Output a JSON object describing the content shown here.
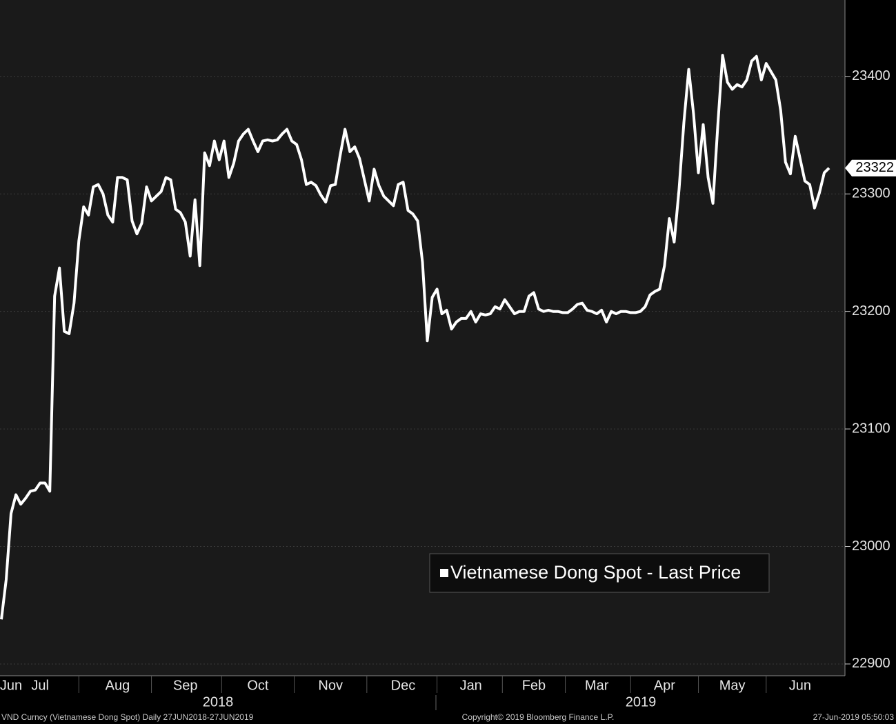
{
  "chart_data": {
    "type": "line",
    "categories": [
      null,
      null,
      "Jun",
      null,
      null,
      null,
      null,
      null,
      "Jul",
      null,
      null,
      null,
      null,
      null,
      null,
      null,
      null,
      null,
      null,
      null,
      null,
      null,
      null,
      null,
      "Aug",
      null,
      null,
      null,
      null,
      null,
      null,
      null,
      null,
      null,
      null,
      null,
      null,
      null,
      "Sep",
      null,
      null,
      null,
      null,
      null,
      null,
      null,
      null,
      null,
      null,
      null,
      null,
      null,
      null,
      "Oct",
      null,
      null,
      null,
      null,
      null,
      null,
      null,
      null,
      null,
      null,
      null,
      null,
      null,
      null,
      "Nov",
      null,
      null,
      null,
      null,
      null,
      null,
      null,
      null,
      null,
      null,
      null,
      null,
      null,
      null,
      "Dec",
      null,
      null,
      null,
      null,
      null,
      null,
      null,
      null,
      null,
      null,
      null,
      null,
      null,
      "Jan",
      null,
      null,
      null,
      null,
      null,
      null,
      null,
      null,
      null,
      null,
      null,
      null,
      "Feb",
      null,
      null,
      null,
      null,
      null,
      null,
      null,
      null,
      null,
      null,
      null,
      null,
      "Mar",
      null,
      null,
      null,
      null,
      null,
      null,
      null,
      null,
      null,
      null,
      null,
      null,
      null,
      "Apr",
      null,
      null,
      null,
      null,
      null,
      null,
      null,
      null,
      null,
      null,
      null,
      null,
      null,
      "May",
      null,
      null,
      null,
      null,
      null,
      null,
      null,
      null,
      null,
      null,
      null,
      null,
      null,
      "Jun",
      null,
      null,
      null,
      null,
      null,
      null
    ],
    "series": [
      {
        "name": "Vietnamese Dong Spot - Last Price",
        "color": "#ffffff",
        "values": [
          22938,
          22972,
          23028,
          23044,
          23036,
          23041,
          23047,
          23048,
          23054,
          23054,
          23047,
          23213,
          23237,
          23183,
          23181,
          23207,
          23260,
          23289,
          23282,
          23306,
          23308,
          23300,
          23282,
          23276,
          23314,
          23314,
          23312,
          23277,
          23266,
          23275,
          23306,
          23294,
          23298,
          23302,
          23314,
          23312,
          23287,
          23284,
          23276,
          23247,
          23295,
          23239,
          23335,
          23324,
          23345,
          23329,
          23345,
          23314,
          23326,
          23345,
          23351,
          23355,
          23345,
          23336,
          23345,
          23346,
          23345,
          23346,
          23351,
          23355,
          23345,
          23342,
          23329,
          23308,
          23310,
          23307,
          23299,
          23293,
          23307,
          23308,
          23333,
          23355,
          23336,
          23340,
          23330,
          23312,
          23294,
          23321,
          23307,
          23298,
          23294,
          23290,
          23308,
          23310,
          23286,
          23283,
          23277,
          23242,
          23175,
          23212,
          23219,
          23198,
          23201,
          23185,
          23191,
          23194,
          23194,
          23200,
          23191,
          23198,
          23197,
          23198,
          23204,
          23202,
          23210,
          23204,
          23198,
          23200,
          23200,
          23213,
          23216,
          23202,
          23200,
          23201,
          23200,
          23200,
          23199,
          23199,
          23202,
          23206,
          23207,
          23201,
          23200,
          23198,
          23201,
          23191,
          23200,
          23198,
          23200,
          23200,
          23199,
          23199,
          23200,
          23204,
          23214,
          23217,
          23219,
          23239,
          23279,
          23259,
          23304,
          23361,
          23406,
          23368,
          23318,
          23359,
          23314,
          23292,
          23358,
          23418,
          23395,
          23389,
          23393,
          23391,
          23397,
          23413,
          23417,
          23397,
          23411,
          23404,
          23397,
          23371,
          23327,
          23317,
          23349,
          23330,
          23311,
          23308,
          23288,
          23301,
          23318,
          23322
        ]
      }
    ],
    "ylim": [
      22890,
      23465
    ],
    "yticks": [
      22900,
      23000,
      23100,
      23200,
      23300,
      23400
    ],
    "grid": true,
    "years": [
      "2018",
      "2019"
    ],
    "footer": {
      "left": "VND Curncy (Vietnamese Dong Spot)  Daily 27JUN2018-27JUN2019",
      "center": "Copyright© 2019 Bloomberg Finance L.P.",
      "right": "27-Jun-2019 05:50:03"
    }
  }
}
